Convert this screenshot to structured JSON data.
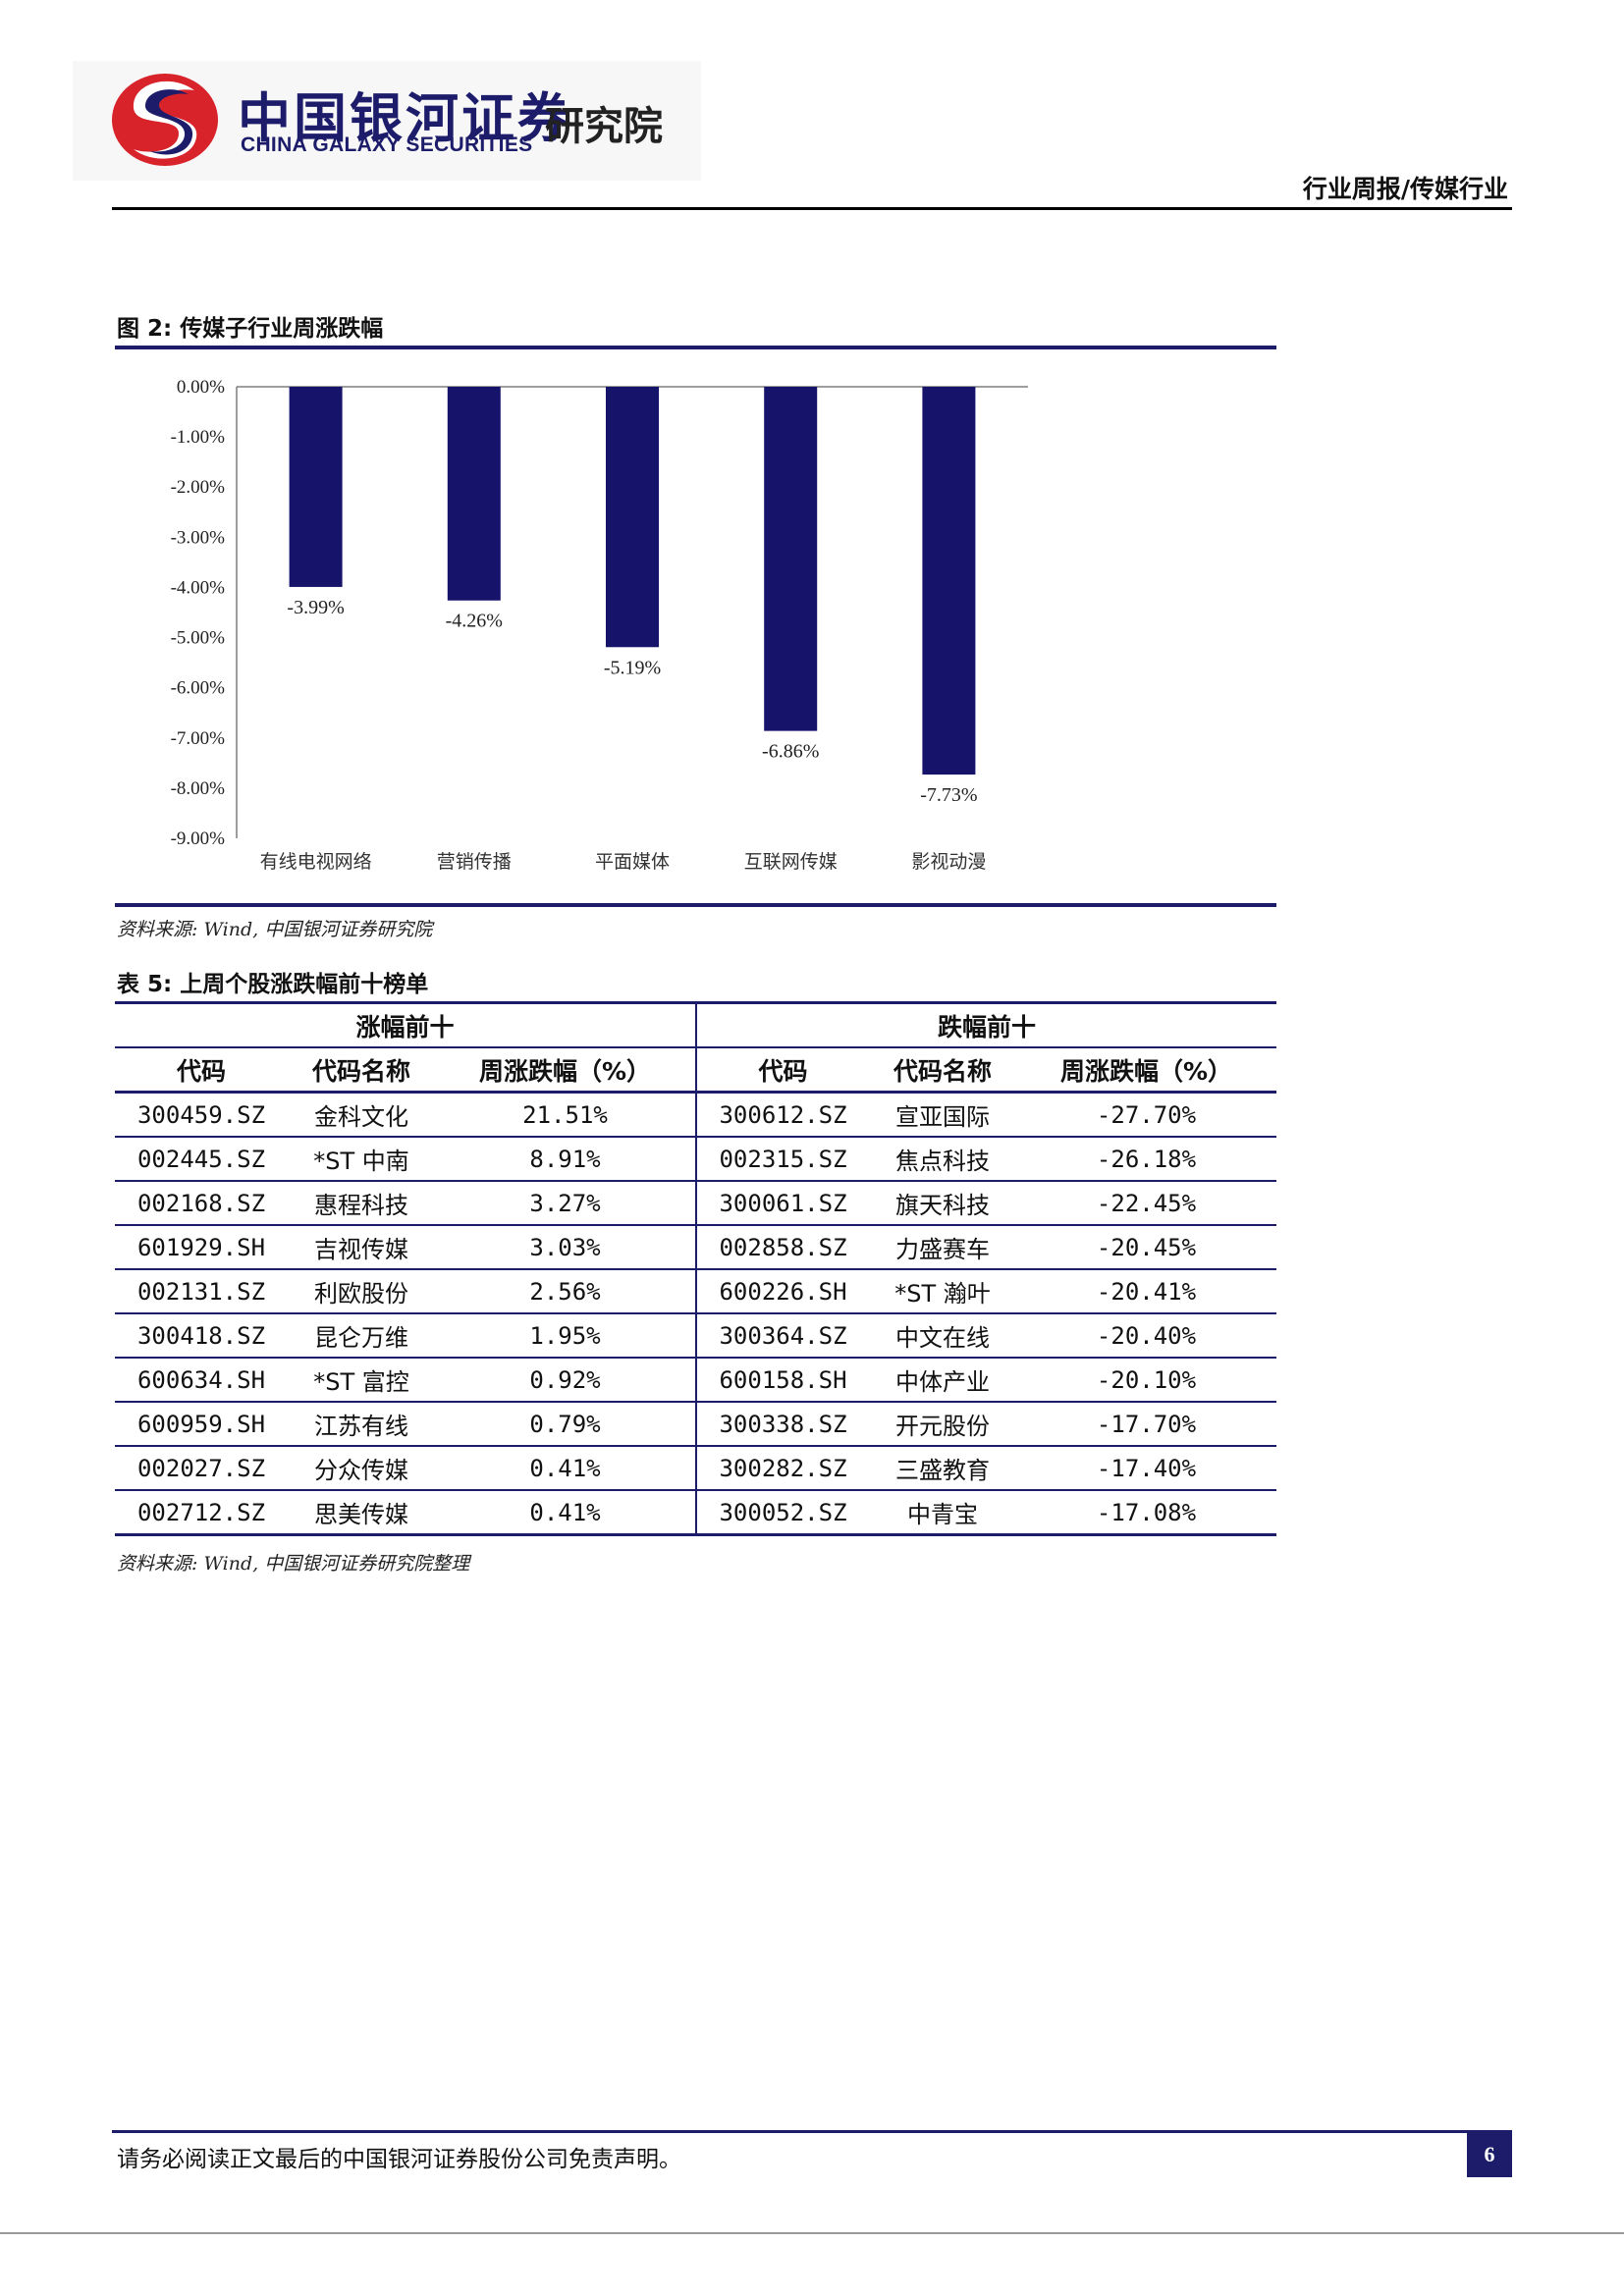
{
  "header": {
    "logo_cn": "中国银河证券",
    "logo_en": "CHINA GALAXY SECURITIES",
    "institute": "研究院",
    "report_type": "行业周报/传媒行业",
    "brand_colors": {
      "navy": "#1c1c6b",
      "red": "#d8232a"
    }
  },
  "figure": {
    "caption": "图 2:  传媒子行业周涨跌幅",
    "source": "资料来源: Wind, 中国银河证券研究院"
  },
  "chart_data": {
    "type": "bar",
    "title": "",
    "xlabel": "",
    "ylabel": "",
    "categories": [
      "有线电视网络",
      "营销传播",
      "平面媒体",
      "互联网传媒",
      "影视动漫"
    ],
    "values": [
      -3.99,
      -4.26,
      -5.19,
      -6.86,
      -7.73
    ],
    "data_labels": [
      "-3.99%",
      "-4.26%",
      "-5.19%",
      "-6.86%",
      "-7.73%"
    ],
    "ylim": [
      -9,
      0
    ],
    "yticks": [
      "0.00%",
      "-1.00%",
      "-2.00%",
      "-3.00%",
      "-4.00%",
      "-5.00%",
      "-6.00%",
      "-7.00%",
      "-8.00%",
      "-9.00%"
    ],
    "bar_color": "#16136b",
    "grid": false,
    "legend": "none"
  },
  "table": {
    "caption": "表 5:  上周个股涨跌幅前十榜单",
    "group_gain": "涨幅前十",
    "group_loss": "跌幅前十",
    "columns": [
      "代码",
      "代码名称",
      "周涨跌幅（%）",
      "代码",
      "代码名称",
      "周涨跌幅（%）"
    ],
    "rows": [
      [
        "300459.SZ",
        "金科文化",
        "21.51%",
        "300612.SZ",
        "宣亚国际",
        "-27.70%"
      ],
      [
        "002445.SZ",
        "*ST 中南",
        "8.91%",
        "002315.SZ",
        "焦点科技",
        "-26.18%"
      ],
      [
        "002168.SZ",
        "惠程科技",
        "3.27%",
        "300061.SZ",
        "旗天科技",
        "-22.45%"
      ],
      [
        "601929.SH",
        "吉视传媒",
        "3.03%",
        "002858.SZ",
        "力盛赛车",
        "-20.45%"
      ],
      [
        "002131.SZ",
        "利欧股份",
        "2.56%",
        "600226.SH",
        "*ST 瀚叶",
        "-20.41%"
      ],
      [
        "300418.SZ",
        "昆仑万维",
        "1.95%",
        "300364.SZ",
        "中文在线",
        "-20.40%"
      ],
      [
        "600634.SH",
        "*ST 富控",
        "0.92%",
        "600158.SH",
        "中体产业",
        "-20.10%"
      ],
      [
        "600959.SH",
        "江苏有线",
        "0.79%",
        "300338.SZ",
        "开元股份",
        "-17.70%"
      ],
      [
        "002027.SZ",
        "分众传媒",
        "0.41%",
        "300282.SZ",
        "三盛教育",
        "-17.40%"
      ],
      [
        "002712.SZ",
        "思美传媒",
        "0.41%",
        "300052.SZ",
        "中青宝",
        "-17.08%"
      ]
    ],
    "source": "资料来源: Wind, 中国银河证券研究院整理"
  },
  "footer": {
    "disclaimer": "请务必阅读正文最后的中国银河证券股份公司免责声明。",
    "page_number": "6"
  }
}
